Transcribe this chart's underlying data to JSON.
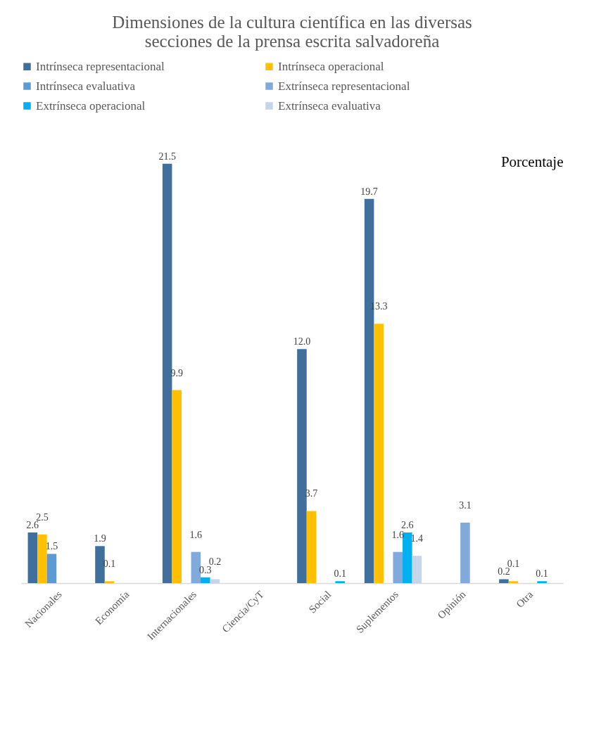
{
  "chart_data": {
    "type": "bar",
    "title": "Dimensiones de la cultura científica en las diversas\nsecciones de la prensa escrita salvadoreña",
    "ylabel": "Porcentaje",
    "categories": [
      "Nacionales",
      "Economía",
      "Internacionales",
      "Ciencia/CyT",
      "Social",
      "Suplementos",
      "Opinión",
      "Otra"
    ],
    "series": [
      {
        "name": "Intrínseca representacional",
        "color": "#416f9c",
        "values": [
          2.6,
          1.9,
          21.5,
          null,
          12.0,
          19.7,
          null,
          0.2
        ],
        "value_labels": [
          "2.6",
          "1.9",
          "21.5",
          null,
          "12.0",
          "19.7",
          null,
          "0.2"
        ]
      },
      {
        "name": "Intrínseca operacional",
        "color": "#ffc000",
        "values": [
          2.5,
          0.1,
          9.9,
          null,
          3.7,
          13.3,
          null,
          0.1
        ],
        "value_labels": [
          "2.5",
          "0.1",
          "9.9",
          null,
          "3.7",
          "13.3",
          null,
          "0.1"
        ]
      },
      {
        "name": "Intrínseca evaluativa",
        "color": "#5b9bd5",
        "values": [
          1.5,
          null,
          null,
          null,
          null,
          null,
          null,
          null
        ],
        "value_labels": [
          "1.5",
          null,
          null,
          null,
          null,
          null,
          null,
          null
        ]
      },
      {
        "name": "Extrínseca representacional",
        "color": "#7faadb",
        "values": [
          null,
          null,
          1.6,
          null,
          null,
          1.6,
          3.1,
          null
        ],
        "value_labels": [
          null,
          null,
          "1.6",
          null,
          null,
          "1.6",
          "3.1",
          null
        ]
      },
      {
        "name": "Extrínseca operacional",
        "color": "#00b0f0",
        "values": [
          null,
          null,
          0.3,
          null,
          0.1,
          2.6,
          null,
          0.1
        ],
        "value_labels": [
          null,
          null,
          "0.3",
          null,
          "0.1",
          "2.6",
          null,
          "0.1"
        ]
      },
      {
        "name": "Extrínseca evaluativa",
        "color": "#c5d5ea",
        "values": [
          null,
          null,
          0.2,
          null,
          null,
          1.4,
          null,
          null
        ],
        "value_labels": [
          null,
          null,
          "0.2",
          null,
          null,
          "1.4",
          null,
          null
        ]
      }
    ],
    "grid": false,
    "legend": "top"
  }
}
